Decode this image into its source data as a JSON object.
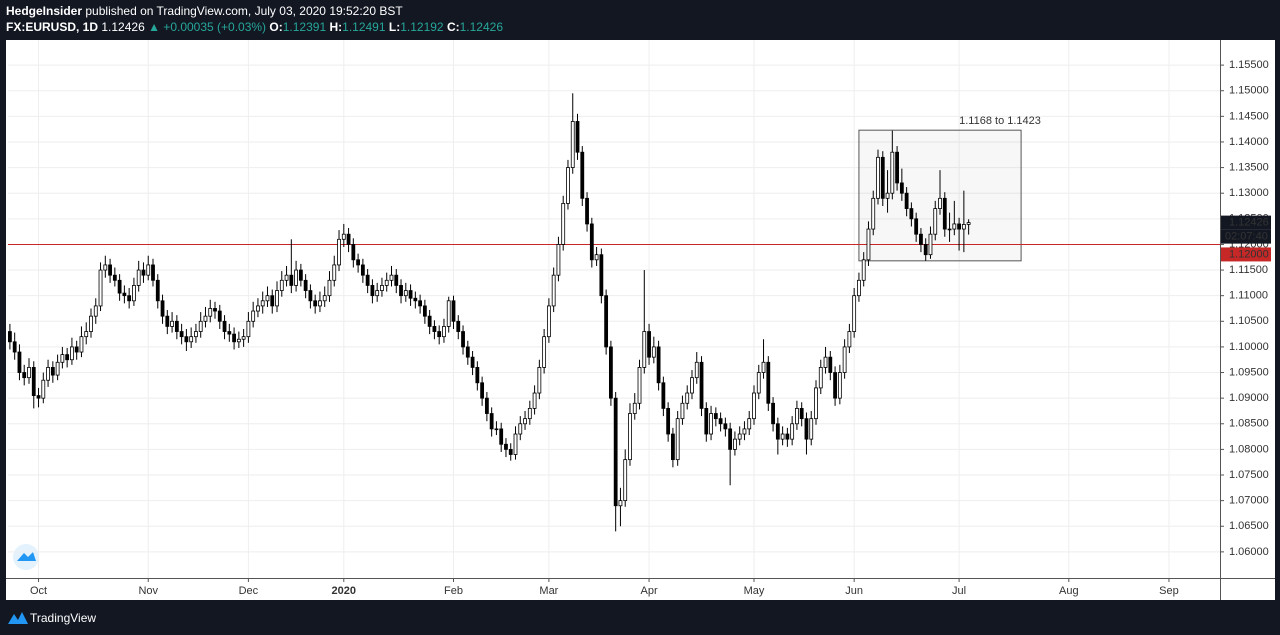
{
  "chart_data": {
    "type": "candlestick",
    "author": "HedgeInsider",
    "title": "published on TradingView.com, July 03, 2020 19:52:20 BST",
    "symbol": "FX:EURUSD, 1D",
    "change": "▲ +0.00035 (+0.03%)",
    "ohlc_labels": [
      "O:",
      "H:",
      "L:",
      "C:"
    ],
    "up_color": "#ffffff",
    "down_color": "#000000",
    "wick_color": "#000000",
    "ohlc": [
      [
        1.103,
        1.1045,
        1.0995,
        1.101
      ],
      [
        1.101,
        1.1028,
        1.0975,
        1.099
      ],
      [
        1.099,
        1.1005,
        1.0935,
        1.095
      ],
      [
        1.095,
        1.0965,
        1.0925,
        1.094
      ],
      [
        1.094,
        1.0978,
        1.0928,
        1.096
      ],
      [
        1.096,
        1.0972,
        1.088,
        1.0905
      ],
      [
        1.0905,
        1.092,
        1.0882,
        1.09
      ],
      [
        1.09,
        1.095,
        1.089,
        1.0935
      ],
      [
        1.0935,
        1.0975,
        1.0922,
        1.096
      ],
      [
        1.096,
        1.0972,
        1.093,
        1.0945
      ],
      [
        1.0945,
        1.0985,
        1.0935,
        1.097
      ],
      [
        1.097,
        1.1,
        1.0958,
        1.0985
      ],
      [
        1.0985,
        1.0998,
        1.096,
        1.0975
      ],
      [
        1.0975,
        1.1018,
        1.0965,
        1.1
      ],
      [
        1.1,
        1.1012,
        1.0975,
        1.099
      ],
      [
        1.099,
        1.104,
        1.098,
        1.102
      ],
      [
        1.102,
        1.1048,
        1.1005,
        1.103
      ],
      [
        1.103,
        1.1075,
        1.1018,
        1.106
      ],
      [
        1.106,
        1.1095,
        1.1045,
        1.108
      ],
      [
        1.108,
        1.1165,
        1.107,
        1.115
      ],
      [
        1.115,
        1.1178,
        1.1135,
        1.116
      ],
      [
        1.116,
        1.1172,
        1.1125,
        1.114
      ],
      [
        1.114,
        1.1155,
        1.1118,
        1.113
      ],
      [
        1.113,
        1.1142,
        1.109,
        1.1105
      ],
      [
        1.1105,
        1.112,
        1.1085,
        1.11
      ],
      [
        1.11,
        1.1115,
        1.1075,
        1.109
      ],
      [
        1.109,
        1.1135,
        1.108,
        1.112
      ],
      [
        1.112,
        1.1168,
        1.1108,
        1.115
      ],
      [
        1.115,
        1.1165,
        1.1125,
        1.114
      ],
      [
        1.114,
        1.1178,
        1.113,
        1.116
      ],
      [
        1.116,
        1.1172,
        1.1118,
        1.113
      ],
      [
        1.113,
        1.1142,
        1.1075,
        1.109
      ],
      [
        1.109,
        1.1102,
        1.1045,
        1.106
      ],
      [
        1.106,
        1.1072,
        1.1025,
        1.104
      ],
      [
        1.104,
        1.1068,
        1.1028,
        1.105
      ],
      [
        1.105,
        1.1062,
        1.1015,
        1.103
      ],
      [
        1.103,
        1.1045,
        1.1005,
        1.102
      ],
      [
        1.102,
        1.1035,
        1.0992,
        1.101
      ],
      [
        1.101,
        1.1038,
        1.0998,
        1.102
      ],
      [
        1.102,
        1.1045,
        1.1008,
        1.103
      ],
      [
        1.103,
        1.1068,
        1.1018,
        1.105
      ],
      [
        1.105,
        1.1078,
        1.1038,
        1.106
      ],
      [
        1.106,
        1.1092,
        1.1048,
        1.1075
      ],
      [
        1.1075,
        1.1088,
        1.1055,
        1.107
      ],
      [
        1.107,
        1.1082,
        1.1035,
        1.105
      ],
      [
        1.105,
        1.1062,
        1.1015,
        1.103
      ],
      [
        1.103,
        1.1045,
        1.101,
        1.1025
      ],
      [
        1.1025,
        1.1038,
        1.0995,
        1.101
      ],
      [
        1.101,
        1.103,
        1.0998,
        1.1015
      ],
      [
        1.1015,
        1.1035,
        1.1,
        1.102
      ],
      [
        1.102,
        1.1068,
        1.1008,
        1.105
      ],
      [
        1.105,
        1.1088,
        1.1038,
        1.107
      ],
      [
        1.107,
        1.1095,
        1.1058,
        1.108
      ],
      [
        1.108,
        1.1108,
        1.1065,
        1.109
      ],
      [
        1.109,
        1.1118,
        1.1078,
        1.11
      ],
      [
        1.11,
        1.1112,
        1.1065,
        1.108
      ],
      [
        1.108,
        1.1128,
        1.1068,
        1.111
      ],
      [
        1.111,
        1.1148,
        1.1098,
        1.113
      ],
      [
        1.113,
        1.1158,
        1.1118,
        1.114
      ],
      [
        1.114,
        1.121,
        1.1105,
        1.112
      ],
      [
        1.112,
        1.1168,
        1.1108,
        1.115
      ],
      [
        1.115,
        1.1162,
        1.1118,
        1.113
      ],
      [
        1.113,
        1.1142,
        1.1095,
        1.111
      ],
      [
        1.111,
        1.1122,
        1.1075,
        1.109
      ],
      [
        1.109,
        1.1102,
        1.1065,
        1.108
      ],
      [
        1.108,
        1.1108,
        1.1068,
        1.109
      ],
      [
        1.109,
        1.1118,
        1.1078,
        1.11
      ],
      [
        1.11,
        1.1148,
        1.1088,
        1.113
      ],
      [
        1.113,
        1.1178,
        1.1118,
        1.116
      ],
      [
        1.116,
        1.1228,
        1.1148,
        1.121
      ],
      [
        1.121,
        1.124,
        1.1195,
        1.122
      ],
      [
        1.122,
        1.1232,
        1.1185,
        1.12
      ],
      [
        1.12,
        1.1212,
        1.1155,
        1.117
      ],
      [
        1.117,
        1.1182,
        1.1145,
        1.116
      ],
      [
        1.116,
        1.1172,
        1.1125,
        1.114
      ],
      [
        1.114,
        1.1152,
        1.1105,
        1.112
      ],
      [
        1.112,
        1.1132,
        1.1085,
        1.11
      ],
      [
        1.11,
        1.1125,
        1.1088,
        1.111
      ],
      [
        1.111,
        1.1135,
        1.1098,
        1.112
      ],
      [
        1.112,
        1.1145,
        1.1108,
        1.113
      ],
      [
        1.113,
        1.1158,
        1.1118,
        1.114
      ],
      [
        1.114,
        1.1152,
        1.1105,
        1.112
      ],
      [
        1.112,
        1.1132,
        1.1085,
        1.11
      ],
      [
        1.11,
        1.1125,
        1.1088,
        1.111
      ],
      [
        1.111,
        1.1122,
        1.108,
        1.1095
      ],
      [
        1.1095,
        1.1108,
        1.1075,
        1.109
      ],
      [
        1.109,
        1.1102,
        1.1065,
        1.108
      ],
      [
        1.108,
        1.1092,
        1.1045,
        1.106
      ],
      [
        1.106,
        1.1072,
        1.1025,
        1.104
      ],
      [
        1.104,
        1.1052,
        1.1015,
        1.103
      ],
      [
        1.103,
        1.1042,
        1.1005,
        1.102
      ],
      [
        1.102,
        1.1055,
        1.1008,
        1.104
      ],
      [
        1.104,
        1.1098,
        1.1028,
        1.109
      ],
      [
        1.109,
        1.11,
        1.1035,
        1.105
      ],
      [
        1.105,
        1.1062,
        1.1015,
        1.103
      ],
      [
        1.103,
        1.1042,
        1.0985,
        1.1
      ],
      [
        1.1,
        1.1012,
        1.0965,
        1.098
      ],
      [
        1.098,
        1.0992,
        1.0945,
        1.096
      ],
      [
        1.096,
        1.0972,
        1.0915,
        1.093
      ],
      [
        1.093,
        1.0942,
        1.0885,
        1.09
      ],
      [
        1.09,
        1.0912,
        1.0855,
        1.087
      ],
      [
        1.087,
        1.0882,
        1.0825,
        1.084
      ],
      [
        1.084,
        1.0855,
        1.0828,
        1.084
      ],
      [
        1.084,
        1.0852,
        1.0795,
        1.081
      ],
      [
        1.081,
        1.0822,
        1.0785,
        1.08
      ],
      [
        1.08,
        1.0812,
        1.0778,
        1.079
      ],
      [
        1.079,
        1.0845,
        1.078,
        1.083
      ],
      [
        1.083,
        1.0865,
        1.0818,
        1.085
      ],
      [
        1.085,
        1.0875,
        1.0838,
        1.086
      ],
      [
        1.086,
        1.0895,
        1.0848,
        1.088
      ],
      [
        1.088,
        1.0925,
        1.0868,
        1.091
      ],
      [
        1.091,
        1.0975,
        1.0898,
        1.096
      ],
      [
        1.096,
        1.1035,
        1.0948,
        1.102
      ],
      [
        1.102,
        1.1095,
        1.1008,
        1.108
      ],
      [
        1.108,
        1.1155,
        1.1068,
        1.114
      ],
      [
        1.114,
        1.1215,
        1.1128,
        1.12
      ],
      [
        1.12,
        1.1295,
        1.1188,
        1.128
      ],
      [
        1.128,
        1.1365,
        1.1268,
        1.135
      ],
      [
        1.135,
        1.1495,
        1.1338,
        1.144
      ],
      [
        1.144,
        1.1455,
        1.1365,
        1.138
      ],
      [
        1.138,
        1.1392,
        1.1275,
        1.129
      ],
      [
        1.129,
        1.1302,
        1.1225,
        1.124
      ],
      [
        1.124,
        1.1252,
        1.1155,
        1.117
      ],
      [
        1.117,
        1.1195,
        1.1158,
        1.118
      ],
      [
        1.118,
        1.1192,
        1.1085,
        1.11
      ],
      [
        1.11,
        1.1112,
        1.0985,
        1.1
      ],
      [
        1.1,
        1.1012,
        1.0885,
        1.09
      ],
      [
        1.09,
        1.0912,
        1.064,
        1.069
      ],
      [
        1.069,
        1.0725,
        1.065,
        1.07
      ],
      [
        1.07,
        1.08,
        1.0688,
        1.078
      ],
      [
        1.078,
        1.089,
        1.0768,
        1.087
      ],
      [
        1.087,
        1.091,
        1.0858,
        1.089
      ],
      [
        1.089,
        1.0975,
        1.0878,
        1.096
      ],
      [
        1.096,
        1.115,
        1.0948,
        1.103
      ],
      [
        1.103,
        1.1045,
        1.0965,
        1.098
      ],
      [
        1.098,
        1.102,
        1.0968,
        1.1
      ],
      [
        1.1,
        1.1012,
        1.0915,
        1.093
      ],
      [
        1.093,
        1.0942,
        1.0865,
        1.088
      ],
      [
        1.088,
        1.0892,
        1.0815,
        1.083
      ],
      [
        1.083,
        1.0842,
        1.0765,
        1.078
      ],
      [
        1.078,
        1.0875,
        1.0768,
        1.086
      ],
      [
        1.086,
        1.0905,
        1.0848,
        1.089
      ],
      [
        1.089,
        1.0925,
        1.0878,
        1.091
      ],
      [
        1.091,
        1.0955,
        1.0898,
        1.094
      ],
      [
        1.094,
        1.099,
        1.0928,
        1.097
      ],
      [
        1.097,
        1.0982,
        1.0865,
        1.088
      ],
      [
        1.088,
        1.0892,
        1.0815,
        1.083
      ],
      [
        1.083,
        1.0885,
        1.0818,
        1.087
      ],
      [
        1.087,
        1.0882,
        1.0845,
        1.086
      ],
      [
        1.086,
        1.0872,
        1.0835,
        1.085
      ],
      [
        1.085,
        1.0862,
        1.0825,
        1.084
      ],
      [
        1.084,
        1.0852,
        1.073,
        1.08
      ],
      [
        1.08,
        1.0835,
        1.0788,
        1.082
      ],
      [
        1.082,
        1.0845,
        1.0808,
        1.083
      ],
      [
        1.083,
        1.0855,
        1.0818,
        1.084
      ],
      [
        1.084,
        1.0875,
        1.0828,
        1.086
      ],
      [
        1.086,
        1.0925,
        1.0848,
        1.091
      ],
      [
        1.091,
        1.0965,
        1.0898,
        1.095
      ],
      [
        1.095,
        1.1015,
        1.0938,
        1.097
      ],
      [
        1.097,
        1.0982,
        1.0875,
        1.089
      ],
      [
        1.089,
        1.0902,
        1.0835,
        1.085
      ],
      [
        1.085,
        1.0862,
        1.079,
        1.082
      ],
      [
        1.082,
        1.0845,
        1.0808,
        1.083
      ],
      [
        1.083,
        1.0842,
        1.0805,
        1.082
      ],
      [
        1.082,
        1.0865,
        1.0808,
        1.085
      ],
      [
        1.085,
        1.0895,
        1.0838,
        1.088
      ],
      [
        1.088,
        1.0892,
        1.0845,
        1.086
      ],
      [
        1.086,
        1.0872,
        1.079,
        1.082
      ],
      [
        1.082,
        1.0875,
        1.0808,
        1.086
      ],
      [
        1.086,
        1.0935,
        1.0848,
        1.092
      ],
      [
        1.092,
        1.0975,
        1.0908,
        1.096
      ],
      [
        1.096,
        1.1,
        1.0948,
        1.098
      ],
      [
        1.098,
        1.0992,
        1.0935,
        1.095
      ],
      [
        1.095,
        1.0962,
        1.0885,
        1.09
      ],
      [
        1.09,
        1.0965,
        1.0888,
        1.095
      ],
      [
        1.095,
        1.1015,
        1.0938,
        1.1
      ],
      [
        1.1,
        1.1045,
        1.0988,
        1.103
      ],
      [
        1.103,
        1.1115,
        1.1018,
        1.11
      ],
      [
        1.11,
        1.1145,
        1.1088,
        1.113
      ],
      [
        1.113,
        1.1185,
        1.1118,
        1.117
      ],
      [
        1.117,
        1.1245,
        1.1158,
        1.123
      ],
      [
        1.123,
        1.1305,
        1.1218,
        1.129
      ],
      [
        1.129,
        1.1385,
        1.1278,
        1.137
      ],
      [
        1.137,
        1.1382,
        1.1275,
        1.129
      ],
      [
        1.129,
        1.1345,
        1.1262,
        1.13
      ],
      [
        1.13,
        1.1422,
        1.1288,
        1.138
      ],
      [
        1.138,
        1.1392,
        1.1305,
        1.132
      ],
      [
        1.132,
        1.1348,
        1.1285,
        1.13
      ],
      [
        1.13,
        1.1312,
        1.1255,
        1.127
      ],
      [
        1.127,
        1.1282,
        1.1235,
        1.125
      ],
      [
        1.125,
        1.1262,
        1.1205,
        1.122
      ],
      [
        1.122,
        1.1232,
        1.1185,
        1.12
      ],
      [
        1.12,
        1.1212,
        1.1168,
        1.118
      ],
      [
        1.118,
        1.1235,
        1.1172,
        1.122
      ],
      [
        1.122,
        1.1285,
        1.1208,
        1.127
      ],
      [
        1.127,
        1.1345,
        1.1258,
        1.129
      ],
      [
        1.129,
        1.1302,
        1.1215,
        1.123
      ],
      [
        1.123,
        1.1262,
        1.1205,
        1.123
      ],
      [
        1.123,
        1.1285,
        1.1218,
        1.124
      ],
      [
        1.124,
        1.1252,
        1.1188,
        1.123
      ],
      [
        1.123,
        1.1305,
        1.1185,
        1.12391
      ],
      [
        1.12391,
        1.12491,
        1.12192,
        1.12426
      ]
    ],
    "xlim": [
      -0.4,
      253.7
    ],
    "xticks": [
      {
        "value": 6,
        "label": "Oct"
      },
      {
        "value": 29,
        "label": "Nov"
      },
      {
        "value": 50,
        "label": "Dec"
      },
      {
        "value": 70,
        "label": "2020"
      },
      {
        "value": 93,
        "label": "Feb"
      },
      {
        "value": 113,
        "label": "Mar"
      },
      {
        "value": 134,
        "label": "Apr"
      },
      {
        "value": 156,
        "label": "May"
      },
      {
        "value": 177,
        "label": "Jun"
      },
      {
        "value": 199,
        "label": "Jul"
      },
      {
        "value": 222,
        "label": "Aug"
      },
      {
        "value": 243,
        "label": "Sep"
      }
    ],
    "ylim": [
      1.0549,
      1.1599
    ],
    "yticks": [
      {
        "value": 1.06,
        "label": "1.06000"
      },
      {
        "value": 1.065,
        "label": "1.06500"
      },
      {
        "value": 1.07,
        "label": "1.07000"
      },
      {
        "value": 1.075,
        "label": "1.07500"
      },
      {
        "value": 1.08,
        "label": "1.08000"
      },
      {
        "value": 1.085,
        "label": "1.08500"
      },
      {
        "value": 1.09,
        "label": "1.09000"
      },
      {
        "value": 1.095,
        "label": "1.09500"
      },
      {
        "value": 1.1,
        "label": "1.10000"
      },
      {
        "value": 1.105,
        "label": "1.10500"
      },
      {
        "value": 1.11,
        "label": "1.11000"
      },
      {
        "value": 1.115,
        "label": "1.11500"
      },
      {
        "value": 1.12,
        "label": "1.12000"
      },
      {
        "value": 1.125,
        "label": "1.12500"
      },
      {
        "value": 1.13,
        "label": "1.13000"
      },
      {
        "value": 1.135,
        "label": "1.13500"
      },
      {
        "value": 1.14,
        "label": "1.14000"
      },
      {
        "value": 1.145,
        "label": "1.14500"
      },
      {
        "value": 1.15,
        "label": "1.15000"
      },
      {
        "value": 1.155,
        "label": "1.15500"
      }
    ],
    "grid": true,
    "level": {
      "value": 1.12,
      "label": "1.12000",
      "color": "#c62828"
    },
    "countdown": "02:07:40",
    "range_box": {
      "from": 178,
      "to": 212,
      "low": 1.1168,
      "high": 1.1423,
      "label": "1.1168 to 1.1423"
    }
  },
  "brand": "TradingView"
}
